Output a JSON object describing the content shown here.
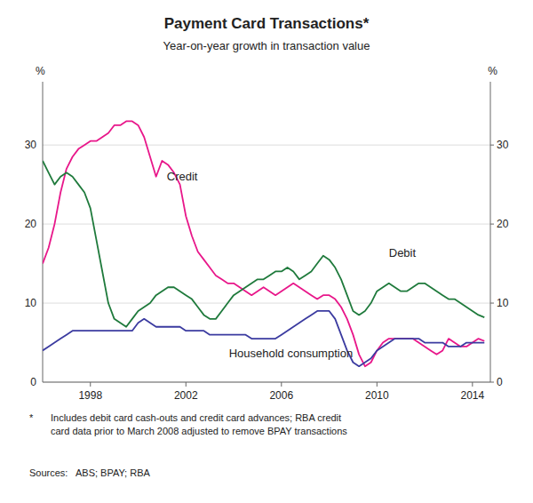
{
  "chart_data": {
    "type": "line",
    "title": "Payment Card Transactions*",
    "subtitle": "Year-on-year growth in transaction value",
    "ylabel": "%",
    "y2label": "%",
    "footnote": {
      "marker": "*",
      "lines": [
        "Includes debit card cash-outs and credit card advances; RBA credit",
        "card data prior to March 2008 adjusted to remove BPAY transactions"
      ]
    },
    "source": "Sources:   ABS; BPAY; RBA",
    "xlim": [
      1996.0,
      2014.75
    ],
    "xticks": [
      1998,
      2002,
      2006,
      2010,
      2014
    ],
    "ylim": [
      0,
      38
    ],
    "yticks": [
      0,
      10,
      20,
      30
    ],
    "y2lim": [
      0,
      38
    ],
    "y2ticks": [
      0,
      10,
      20,
      30
    ],
    "grid": true,
    "annotations": [
      {
        "text": "Credit",
        "x": 2001.2,
        "y": 25.5
      },
      {
        "text": "Debit",
        "x": 2010.5,
        "y": 15.8
      },
      {
        "text": "Household consumption",
        "x": 2003.8,
        "y": 3.2
      }
    ],
    "x": [
      1996.0,
      1996.25,
      1996.5,
      1996.75,
      1997.0,
      1997.25,
      1997.5,
      1997.75,
      1998.0,
      1998.25,
      1998.5,
      1998.75,
      1999.0,
      1999.25,
      1999.5,
      1999.75,
      2000.0,
      2000.25,
      2000.5,
      2000.75,
      2001.0,
      2001.25,
      2001.5,
      2001.75,
      2002.0,
      2002.25,
      2002.5,
      2002.75,
      2003.0,
      2003.25,
      2003.5,
      2003.75,
      2004.0,
      2004.25,
      2004.5,
      2004.75,
      2005.0,
      2005.25,
      2005.5,
      2005.75,
      2006.0,
      2006.25,
      2006.5,
      2006.75,
      2007.0,
      2007.25,
      2007.5,
      2007.75,
      2008.0,
      2008.25,
      2008.5,
      2008.75,
      2009.0,
      2009.25,
      2009.5,
      2009.75,
      2010.0,
      2010.25,
      2010.5,
      2010.75,
      2011.0,
      2011.25,
      2011.5,
      2011.75,
      2012.0,
      2012.25,
      2012.5,
      2012.75,
      2013.0,
      2013.25,
      2013.5,
      2013.75,
      2014.0,
      2014.25,
      2014.5
    ],
    "series": [
      {
        "color": "#E8178A",
        "values": [
          15.0,
          17.0,
          20.0,
          24.0,
          27.0,
          28.5,
          29.5,
          30.0,
          30.5,
          30.5,
          31.0,
          31.5,
          32.5,
          32.5,
          33.0,
          33.0,
          32.5,
          31.0,
          28.5,
          26.0,
          28.0,
          27.5,
          26.5,
          25.0,
          21.0,
          18.5,
          16.5,
          15.5,
          14.5,
          13.5,
          13.0,
          12.5,
          12.5,
          12.0,
          11.5,
          11.0,
          11.5,
          12.0,
          11.5,
          11.0,
          11.5,
          12.0,
          12.5,
          12.0,
          11.5,
          11.0,
          10.5,
          11.0,
          11.0,
          10.5,
          9.5,
          8.0,
          6.0,
          3.5,
          2.0,
          2.5,
          4.0,
          5.0,
          5.5,
          5.5,
          5.5,
          5.5,
          5.5,
          5.0,
          4.5,
          4.0,
          3.5,
          4.0,
          5.5,
          5.0,
          4.5,
          4.5,
          5.0,
          5.5,
          5.2
        ]
      },
      {
        "color": "#1F7A3C",
        "values": [
          28.0,
          26.5,
          25.0,
          26.0,
          26.5,
          26.0,
          25.0,
          24.0,
          22.0,
          18.0,
          14.0,
          10.0,
          8.0,
          7.5,
          7.0,
          8.0,
          9.0,
          9.5,
          10.0,
          11.0,
          11.5,
          12.0,
          12.0,
          11.5,
          11.0,
          10.5,
          9.5,
          8.5,
          8.0,
          8.0,
          9.0,
          10.0,
          11.0,
          11.5,
          12.0,
          12.5,
          13.0,
          13.0,
          13.5,
          14.0,
          14.0,
          14.5,
          14.0,
          13.0,
          13.5,
          14.0,
          15.0,
          16.0,
          15.5,
          14.5,
          13.0,
          11.0,
          9.0,
          8.5,
          9.0,
          10.0,
          11.5,
          12.0,
          12.5,
          12.0,
          11.5,
          11.5,
          12.0,
          12.5,
          12.5,
          12.0,
          11.5,
          11.0,
          10.5,
          10.5,
          10.0,
          9.5,
          9.0,
          8.5,
          8.2
        ]
      },
      {
        "color": "#3B3BA0",
        "values": [
          4.0,
          4.5,
          5.0,
          5.5,
          6.0,
          6.5,
          6.5,
          6.5,
          6.5,
          6.5,
          6.5,
          6.5,
          6.5,
          6.5,
          6.5,
          6.5,
          7.5,
          8.0,
          7.5,
          7.0,
          7.0,
          7.0,
          7.0,
          7.0,
          6.5,
          6.5,
          6.5,
          6.5,
          6.0,
          6.0,
          6.0,
          6.0,
          6.0,
          6.0,
          6.0,
          5.5,
          5.5,
          5.5,
          5.5,
          5.5,
          6.0,
          6.5,
          7.0,
          7.5,
          8.0,
          8.5,
          9.0,
          9.0,
          9.0,
          8.0,
          6.0,
          4.0,
          2.5,
          2.0,
          2.5,
          3.0,
          4.0,
          4.5,
          5.0,
          5.5,
          5.5,
          5.5,
          5.5,
          5.5,
          5.0,
          5.0,
          5.0,
          5.0,
          4.5,
          4.5,
          4.5,
          5.0,
          5.0,
          5.0,
          5.0
        ]
      }
    ]
  }
}
